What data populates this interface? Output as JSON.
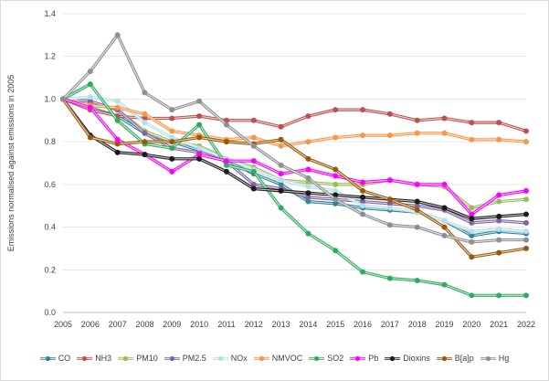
{
  "chart": {
    "y_axis_title": "Emissions normalised against emissions in 2005",
    "y_tick_labels": [
      "0.0",
      "0.2",
      "0.4",
      "0.6",
      "0.8",
      "1.0",
      "1.2",
      "1.4"
    ],
    "grid_color": "#e8e8e8",
    "axis_line_color": "#bfbfbf",
    "text_color": "#404040",
    "background_color": "#ffffff"
  },
  "chart_data": {
    "type": "line",
    "title": "",
    "xlabel": "",
    "ylabel": "Emissions normalised against emissions in 2005",
    "ylim": [
      0,
      1.4
    ],
    "y_tick_step": 0.2,
    "grid": true,
    "legend_position": "bottom",
    "x": [
      2005,
      2006,
      2007,
      2008,
      2009,
      2010,
      2011,
      2012,
      2013,
      2014,
      2015,
      2016,
      2017,
      2018,
      2019,
      2020,
      2021,
      2022
    ],
    "series": [
      {
        "name": "CO",
        "color": "#31859c",
        "values": [
          1.0,
          0.96,
          0.92,
          0.84,
          0.8,
          0.76,
          0.71,
          0.65,
          0.6,
          0.52,
          0.51,
          0.49,
          0.48,
          0.47,
          0.43,
          0.36,
          0.38,
          0.37
        ]
      },
      {
        "name": "NH3",
        "color": "#c0504d",
        "values": [
          1.0,
          0.95,
          0.92,
          0.91,
          0.91,
          0.92,
          0.9,
          0.9,
          0.87,
          0.92,
          0.95,
          0.95,
          0.93,
          0.9,
          0.91,
          0.89,
          0.89,
          0.85
        ]
      },
      {
        "name": "PM10",
        "color": "#9bbb59",
        "values": [
          1.0,
          0.98,
          0.95,
          0.85,
          0.8,
          0.78,
          0.72,
          0.68,
          0.62,
          0.61,
          0.6,
          0.6,
          0.62,
          0.6,
          0.59,
          0.49,
          0.52,
          0.53
        ]
      },
      {
        "name": "PM2.5",
        "color": "#8064a2",
        "values": [
          1.0,
          0.99,
          0.95,
          0.84,
          0.77,
          0.75,
          0.71,
          0.6,
          0.58,
          0.54,
          0.53,
          0.52,
          0.51,
          0.5,
          0.48,
          0.42,
          0.43,
          0.42
        ]
      },
      {
        "name": "NOx",
        "color": "#b7dee8",
        "values": [
          1.0,
          1.01,
          0.99,
          0.89,
          0.82,
          0.77,
          0.72,
          0.67,
          0.62,
          0.59,
          0.57,
          0.5,
          0.49,
          0.47,
          0.43,
          0.38,
          0.39,
          0.38
        ]
      },
      {
        "name": "NMVOC",
        "color": "#f79646",
        "values": [
          1.0,
          0.97,
          0.96,
          0.93,
          0.85,
          0.83,
          0.81,
          0.82,
          0.78,
          0.8,
          0.82,
          0.83,
          0.83,
          0.84,
          0.84,
          0.81,
          0.81,
          0.8
        ]
      },
      {
        "name": "SO2",
        "color": "#2ead5e",
        "values": [
          1.0,
          1.07,
          0.9,
          0.79,
          0.77,
          0.88,
          0.69,
          0.66,
          0.49,
          0.37,
          0.29,
          0.19,
          0.16,
          0.15,
          0.13,
          0.08,
          0.08,
          0.08
        ]
      },
      {
        "name": "Pb",
        "color": "#ff00ff",
        "values": [
          1.0,
          0.96,
          0.81,
          0.74,
          0.66,
          0.74,
          0.71,
          0.71,
          0.65,
          0.67,
          0.64,
          0.61,
          0.62,
          0.6,
          0.6,
          0.46,
          0.55,
          0.57
        ]
      },
      {
        "name": "Dioxins",
        "color": "#1a1a1a",
        "values": [
          1.0,
          0.83,
          0.75,
          0.74,
          0.72,
          0.72,
          0.66,
          0.58,
          0.57,
          0.56,
          0.55,
          0.54,
          0.53,
          0.52,
          0.49,
          0.44,
          0.45,
          0.46
        ]
      },
      {
        "name": "B[a]p",
        "color": "#9c5708",
        "values": [
          1.0,
          0.82,
          0.79,
          0.8,
          0.8,
          0.82,
          0.8,
          0.79,
          0.81,
          0.72,
          0.67,
          0.57,
          0.53,
          0.48,
          0.4,
          0.26,
          0.28,
          0.3
        ]
      },
      {
        "name": "Hg",
        "color": "#8f8f8f",
        "values": [
          1.0,
          1.13,
          1.3,
          1.03,
          0.95,
          0.99,
          0.88,
          0.78,
          0.69,
          0.63,
          0.53,
          0.46,
          0.41,
          0.4,
          0.36,
          0.33,
          0.34,
          0.34
        ]
      }
    ]
  }
}
